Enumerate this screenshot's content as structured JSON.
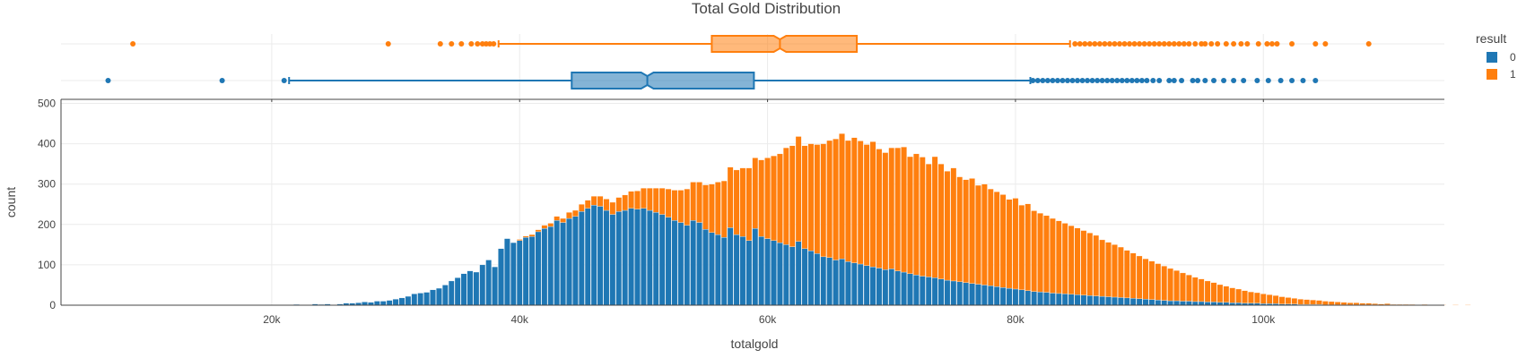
{
  "chart_data": {
    "type": "histogram",
    "title": "Total Gold Distribution",
    "xlabel": "totalgold",
    "ylabel": "count",
    "xlim": [
      3000,
      114600
    ],
    "ylim": [
      0,
      510
    ],
    "x_ticks": [
      20000,
      40000,
      60000,
      80000,
      100000
    ],
    "x_tick_labels": [
      "20k",
      "40k",
      "60k",
      "80k",
      "100k"
    ],
    "y_ticks": [
      0,
      100,
      200,
      300,
      400,
      500
    ],
    "y_tick_labels": [
      "0",
      "100",
      "200",
      "300",
      "400",
      "500"
    ],
    "barmode": "stack",
    "bin_width": 500,
    "bin_start": 20750,
    "grid": true,
    "legend": {
      "title": "result",
      "placement": "top-right",
      "entries": [
        {
          "label": "0",
          "color": "#1f77b4"
        },
        {
          "label": "1",
          "color": "#ff7f0e"
        }
      ]
    },
    "series": [
      {
        "name": "0",
        "color": "#1f77b4",
        "values": [
          1,
          0,
          2,
          1,
          1,
          3,
          2,
          3,
          1,
          3,
          5,
          5,
          6,
          8,
          7,
          10,
          10,
          12,
          15,
          18,
          22,
          28,
          30,
          32,
          38,
          42,
          50,
          60,
          68,
          78,
          85,
          82,
          100,
          112,
          95,
          140,
          165,
          155,
          160,
          168,
          170,
          182,
          190,
          195,
          210,
          205,
          215,
          220,
          232,
          240,
          248,
          245,
          235,
          225,
          232,
          235,
          240,
          238,
          240,
          235,
          230,
          225,
          218,
          210,
          205,
          198,
          210,
          205,
          188,
          180,
          175,
          168,
          192,
          175,
          170,
          160,
          190,
          170,
          165,
          160,
          155,
          150,
          145,
          158,
          140,
          135,
          128,
          120,
          118,
          112,
          115,
          108,
          105,
          102,
          98,
          95,
          92,
          88,
          90,
          85,
          82,
          78,
          75,
          72,
          70,
          68,
          65,
          62,
          60,
          58,
          56,
          54,
          52,
          50,
          48,
          46,
          44,
          42,
          40,
          38,
          36,
          34,
          33,
          32,
          30,
          29,
          28,
          27,
          26,
          25,
          24,
          23,
          22,
          21,
          20,
          19,
          18,
          17,
          16,
          15,
          14,
          13,
          12,
          11,
          11,
          10,
          10,
          9,
          9,
          8,
          8,
          7,
          7,
          6,
          6,
          5,
          5,
          5,
          4,
          4,
          4,
          3,
          3,
          3,
          2,
          2,
          2,
          2,
          1,
          1,
          1,
          1,
          1,
          1,
          1,
          1,
          1,
          0,
          1,
          0,
          0,
          0,
          1,
          0,
          1
        ]
      },
      {
        "name": "1",
        "color": "#ff7f0e",
        "values": [
          0,
          0,
          0,
          0,
          0,
          0,
          0,
          0,
          0,
          0,
          0,
          0,
          0,
          0,
          0,
          0,
          0,
          0,
          0,
          0,
          0,
          0,
          0,
          0,
          0,
          0,
          0,
          0,
          0,
          0,
          0,
          0,
          0,
          0,
          0,
          0,
          0,
          0,
          3,
          3,
          5,
          5,
          8,
          8,
          10,
          10,
          15,
          15,
          18,
          20,
          22,
          25,
          28,
          30,
          35,
          38,
          42,
          45,
          50,
          55,
          60,
          65,
          70,
          75,
          80,
          90,
          95,
          100,
          110,
          120,
          130,
          140,
          150,
          160,
          170,
          180,
          175,
          190,
          200,
          210,
          220,
          240,
          250,
          260,
          255,
          265,
          270,
          280,
          290,
          300,
          310,
          300,
          310,
          305,
          300,
          310,
          295,
          290,
          300,
          305,
          310,
          290,
          300,
          295,
          280,
          300,
          285,
          270,
          280,
          260,
          255,
          260,
          245,
          250,
          240,
          235,
          230,
          220,
          225,
          210,
          215,
          200,
          195,
          190,
          185,
          180,
          175,
          170,
          165,
          160,
          155,
          150,
          140,
          135,
          130,
          125,
          118,
          112,
          106,
          100,
          95,
          90,
          85,
          80,
          75,
          70,
          65,
          60,
          56,
          52,
          48,
          44,
          40,
          37,
          34,
          31,
          28,
          26,
          24,
          22,
          20,
          18,
          16,
          14,
          13,
          12,
          11,
          10,
          9,
          8,
          7,
          6,
          5,
          5,
          4,
          4,
          3,
          3,
          3,
          2,
          2,
          2,
          1,
          1,
          1,
          1,
          1,
          1,
          0,
          1,
          0,
          1
        ]
      }
    ],
    "box_plots": [
      {
        "name": "1",
        "color": "#ff7f0e",
        "fill": "rgba(255,127,14,0.55)",
        "q1": 55500,
        "median": 61000,
        "q3": 67200,
        "lower_fence": 38300,
        "upper_fence": 84400,
        "notch_low": 60500,
        "notch_high": 61500,
        "outliers": [
          8800,
          29400,
          33600,
          34500,
          35300,
          36100,
          36600,
          37000,
          37300,
          37600,
          37900,
          84800,
          85200,
          85600,
          86000,
          86400,
          86800,
          87200,
          87600,
          88000,
          88400,
          88800,
          89200,
          89600,
          90000,
          90400,
          90800,
          91200,
          91600,
          92000,
          92400,
          92800,
          93200,
          93600,
          94000,
          94500,
          95000,
          95300,
          95800,
          96300,
          97000,
          97600,
          98200,
          98700,
          99600,
          100300,
          100700,
          101100,
          102300,
          104200,
          105000,
          108500
        ]
      },
      {
        "name": "0",
        "color": "#1f77b4",
        "fill": "rgba(31,119,180,0.55)",
        "q1": 44200,
        "median": 50300,
        "q3": 58900,
        "lower_fence": 21400,
        "upper_fence": 81200,
        "notch_low": 49800,
        "notch_high": 50800,
        "outliers": [
          6800,
          16000,
          21000,
          81400,
          81800,
          82200,
          82600,
          83000,
          83400,
          83800,
          84200,
          84600,
          85000,
          85400,
          85800,
          86200,
          86600,
          87000,
          87400,
          87800,
          88200,
          88600,
          89000,
          89400,
          89800,
          90200,
          90600,
          91100,
          91600,
          92400,
          92800,
          93400,
          94300,
          94700,
          95300,
          96000,
          96800,
          97600,
          98400,
          99500,
          100400,
          101400,
          102300,
          103200,
          104200
        ]
      }
    ]
  }
}
